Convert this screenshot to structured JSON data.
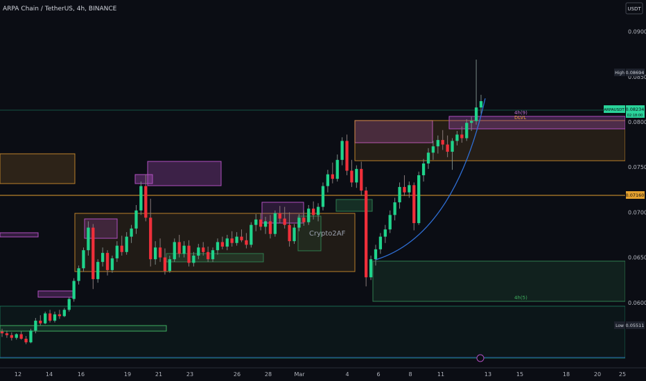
{
  "header": {
    "symbol_title": "ARPA Chain / TetherUS, 4h, BINANCE",
    "currency_button": "USDT"
  },
  "watermark": "Crypto2AF",
  "colors": {
    "background": "#0b0d14",
    "up": "#26a69a",
    "down": "#ef2f3a",
    "green_candle": "#1fd38b",
    "orange_zone": "#e39b2f",
    "purple_zone": "#b04fc0",
    "green_zone": "#2e7d4f",
    "curve": "#2f6fd6",
    "price_tag": "#2ad39a"
  },
  "chart_data": {
    "type": "candlestick",
    "y_axis": {
      "range": [
        0.0527,
        0.0935
      ],
      "ticks": [
        "0.09000",
        "0.08500",
        "0.08000",
        "0.07500",
        "0.07000",
        "0.06500",
        "0.06000"
      ]
    },
    "x_axis": {
      "tick_labels": [
        "12",
        "14",
        "16",
        "19",
        "21",
        "23",
        "26",
        "28",
        "Mar",
        "4",
        "6",
        "8",
        "11",
        "13",
        "15",
        "18",
        "20",
        "25"
      ]
    },
    "price_labels": {
      "high_label": "High",
      "high_value": "0.08694",
      "low_label": "Low",
      "low_value": "0.05511",
      "current_symbol": "ARPAUSDT",
      "current_value": "0.08234",
      "current_countdown": "02:18:00",
      "level_value": "0.07160"
    },
    "zone_labels": {
      "zone_a": "4h(9)",
      "zone_b": "DLVL",
      "zone_c": "4h(5)"
    },
    "candles": [
      [
        0.0568,
        0.0571,
        0.0562,
        0.0566
      ],
      [
        0.0566,
        0.0569,
        0.0561,
        0.0564
      ],
      [
        0.0564,
        0.0567,
        0.0558,
        0.0561
      ],
      [
        0.0561,
        0.0566,
        0.0559,
        0.0565
      ],
      [
        0.0565,
        0.0568,
        0.0559,
        0.056
      ],
      [
        0.056,
        0.0563,
        0.0554,
        0.0556
      ],
      [
        0.0556,
        0.0571,
        0.0555,
        0.0569
      ],
      [
        0.0569,
        0.0583,
        0.0566,
        0.058
      ],
      [
        0.058,
        0.0586,
        0.0575,
        0.0577
      ],
      [
        0.0577,
        0.059,
        0.0576,
        0.0588
      ],
      [
        0.0588,
        0.0592,
        0.0578,
        0.058
      ],
      [
        0.058,
        0.059,
        0.0578,
        0.0587
      ],
      [
        0.0587,
        0.0592,
        0.0582,
        0.0585
      ],
      [
        0.0585,
        0.0594,
        0.0584,
        0.0592
      ],
      [
        0.0592,
        0.0606,
        0.059,
        0.0604
      ],
      [
        0.0604,
        0.0627,
        0.0601,
        0.0624
      ],
      [
        0.0624,
        0.0641,
        0.062,
        0.0638
      ],
      [
        0.0638,
        0.0661,
        0.0634,
        0.0658
      ],
      [
        0.0658,
        0.069,
        0.0652,
        0.0683
      ],
      [
        0.0683,
        0.0687,
        0.0615,
        0.0626
      ],
      [
        0.0626,
        0.0648,
        0.0622,
        0.0645
      ],
      [
        0.0645,
        0.0661,
        0.064,
        0.0655
      ],
      [
        0.0655,
        0.0658,
        0.063,
        0.0636
      ],
      [
        0.0636,
        0.0652,
        0.0633,
        0.0649
      ],
      [
        0.0649,
        0.0668,
        0.0645,
        0.0663
      ],
      [
        0.0663,
        0.0674,
        0.0652,
        0.0656
      ],
      [
        0.0656,
        0.0678,
        0.0653,
        0.0673
      ],
      [
        0.0673,
        0.0686,
        0.0666,
        0.0682
      ],
      [
        0.0682,
        0.0708,
        0.0676,
        0.0702
      ],
      [
        0.0702,
        0.0734,
        0.0697,
        0.0729
      ],
      [
        0.0729,
        0.0742,
        0.069,
        0.0694
      ],
      [
        0.0694,
        0.0715,
        0.064,
        0.0648
      ],
      [
        0.0648,
        0.0668,
        0.0642,
        0.0661
      ],
      [
        0.0661,
        0.0671,
        0.0645,
        0.065
      ],
      [
        0.065,
        0.066,
        0.0631,
        0.0635
      ],
      [
        0.0635,
        0.0652,
        0.0633,
        0.0648
      ],
      [
        0.0648,
        0.0671,
        0.0645,
        0.0667
      ],
      [
        0.0667,
        0.0675,
        0.065,
        0.0654
      ],
      [
        0.0654,
        0.0668,
        0.065,
        0.0663
      ],
      [
        0.0663,
        0.0669,
        0.064,
        0.0644
      ],
      [
        0.0644,
        0.0656,
        0.064,
        0.0652
      ],
      [
        0.0652,
        0.0665,
        0.0648,
        0.0661
      ],
      [
        0.0661,
        0.0667,
        0.0652,
        0.0656
      ],
      [
        0.0656,
        0.0662,
        0.0645,
        0.0648
      ],
      [
        0.0648,
        0.0661,
        0.0645,
        0.0658
      ],
      [
        0.0658,
        0.0671,
        0.0653,
        0.0667
      ],
      [
        0.0667,
        0.0673,
        0.0659,
        0.0662
      ],
      [
        0.0662,
        0.0675,
        0.0658,
        0.0671
      ],
      [
        0.0671,
        0.0679,
        0.0662,
        0.0666
      ],
      [
        0.0666,
        0.0678,
        0.0663,
        0.0673
      ],
      [
        0.0673,
        0.0681,
        0.0667,
        0.0669
      ],
      [
        0.0669,
        0.0677,
        0.066,
        0.0664
      ],
      [
        0.0664,
        0.0689,
        0.0661,
        0.0686
      ],
      [
        0.0686,
        0.0698,
        0.0679,
        0.0692
      ],
      [
        0.0692,
        0.0699,
        0.068,
        0.0684
      ],
      [
        0.0684,
        0.0695,
        0.0676,
        0.069
      ],
      [
        0.069,
        0.0697,
        0.0671,
        0.0676
      ],
      [
        0.0676,
        0.0702,
        0.0673,
        0.0699
      ],
      [
        0.0699,
        0.0707,
        0.0688,
        0.0693
      ],
      [
        0.0693,
        0.0706,
        0.0682,
        0.0686
      ],
      [
        0.0686,
        0.07,
        0.0662,
        0.0668
      ],
      [
        0.0668,
        0.0687,
        0.0665,
        0.0683
      ],
      [
        0.0683,
        0.0698,
        0.0679,
        0.0694
      ],
      [
        0.0694,
        0.0702,
        0.0685,
        0.0689
      ],
      [
        0.0689,
        0.0708,
        0.0686,
        0.0704
      ],
      [
        0.0704,
        0.0712,
        0.0692,
        0.0697
      ],
      [
        0.0697,
        0.071,
        0.069,
        0.0706
      ],
      [
        0.0706,
        0.0733,
        0.0702,
        0.0729
      ],
      [
        0.0729,
        0.0747,
        0.0722,
        0.0742
      ],
      [
        0.0742,
        0.0755,
        0.0732,
        0.0737
      ],
      [
        0.0737,
        0.0764,
        0.0734,
        0.0758
      ],
      [
        0.0758,
        0.0783,
        0.0752,
        0.0779
      ],
      [
        0.0779,
        0.0786,
        0.0741,
        0.0746
      ],
      [
        0.0746,
        0.0758,
        0.0728,
        0.0733
      ],
      [
        0.0733,
        0.0752,
        0.0727,
        0.0748
      ],
      [
        0.0748,
        0.0756,
        0.0719,
        0.0724
      ],
      [
        0.0724,
        0.0728,
        0.0618,
        0.0628
      ],
      [
        0.0628,
        0.0652,
        0.0625,
        0.0648
      ],
      [
        0.0648,
        0.0664,
        0.0641,
        0.0659
      ],
      [
        0.0659,
        0.0677,
        0.0654,
        0.0673
      ],
      [
        0.0673,
        0.0686,
        0.0666,
        0.0681
      ],
      [
        0.0681,
        0.0702,
        0.0677,
        0.0697
      ],
      [
        0.0697,
        0.0716,
        0.0691,
        0.0711
      ],
      [
        0.0711,
        0.0733,
        0.0704,
        0.0728
      ],
      [
        0.0728,
        0.0741,
        0.0718,
        0.0722
      ],
      [
        0.0722,
        0.0734,
        0.0716,
        0.073
      ],
      [
        0.073,
        0.0733,
        0.068,
        0.0688
      ],
      [
        0.0688,
        0.0745,
        0.0686,
        0.0741
      ],
      [
        0.0741,
        0.0759,
        0.0734,
        0.0754
      ],
      [
        0.0754,
        0.0771,
        0.0748,
        0.0766
      ],
      [
        0.0766,
        0.0779,
        0.0758,
        0.0773
      ],
      [
        0.0773,
        0.0785,
        0.0765,
        0.078
      ],
      [
        0.078,
        0.0791,
        0.0769,
        0.0775
      ],
      [
        0.0775,
        0.0785,
        0.0761,
        0.0767
      ],
      [
        0.0767,
        0.0782,
        0.0747,
        0.0779
      ],
      [
        0.0779,
        0.079,
        0.0774,
        0.0786
      ],
      [
        0.0786,
        0.0795,
        0.0777,
        0.0782
      ],
      [
        0.0782,
        0.0803,
        0.0779,
        0.0799
      ],
      [
        0.0799,
        0.0806,
        0.079,
        0.0801
      ],
      [
        0.0801,
        0.0869,
        0.0797,
        0.0816
      ],
      [
        0.0816,
        0.083,
        0.0809,
        0.0823
      ]
    ]
  }
}
